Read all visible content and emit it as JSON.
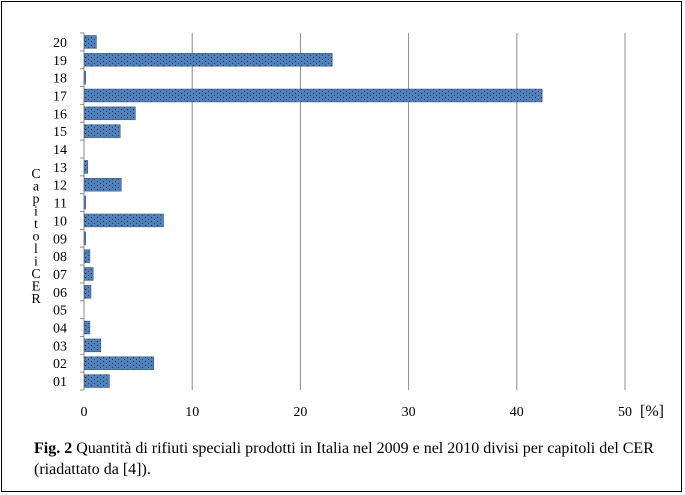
{
  "chart_data": {
    "type": "bar",
    "orientation": "horizontal",
    "categories": [
      "01",
      "02",
      "03",
      "04",
      "05",
      "06",
      "07",
      "08",
      "09",
      "10",
      "11",
      "12",
      "13",
      "14",
      "15",
      "16",
      "17",
      "18",
      "19",
      "20"
    ],
    "values": [
      2.3,
      6.4,
      1.5,
      0.5,
      0.0,
      0.6,
      0.8,
      0.5,
      0.1,
      7.3,
      0.1,
      3.4,
      0.3,
      0.0,
      3.3,
      4.7,
      42.3,
      0.1,
      22.9,
      1.1
    ],
    "xlim": [
      0,
      50
    ],
    "x_ticks": [
      "0",
      "10",
      "20",
      "30",
      "40",
      "50"
    ],
    "x_unit": "[%]",
    "ylabel": "Capitoli CER",
    "bar_color": "#4f81bd",
    "grid": "vertical"
  },
  "caption": {
    "label": "Fig. 2",
    "text": " Quantità di rifiuti speciali prodotti in Italia nel 2009 e nel 2010 divisi per capitoli del CER (riadattato da [4])."
  }
}
